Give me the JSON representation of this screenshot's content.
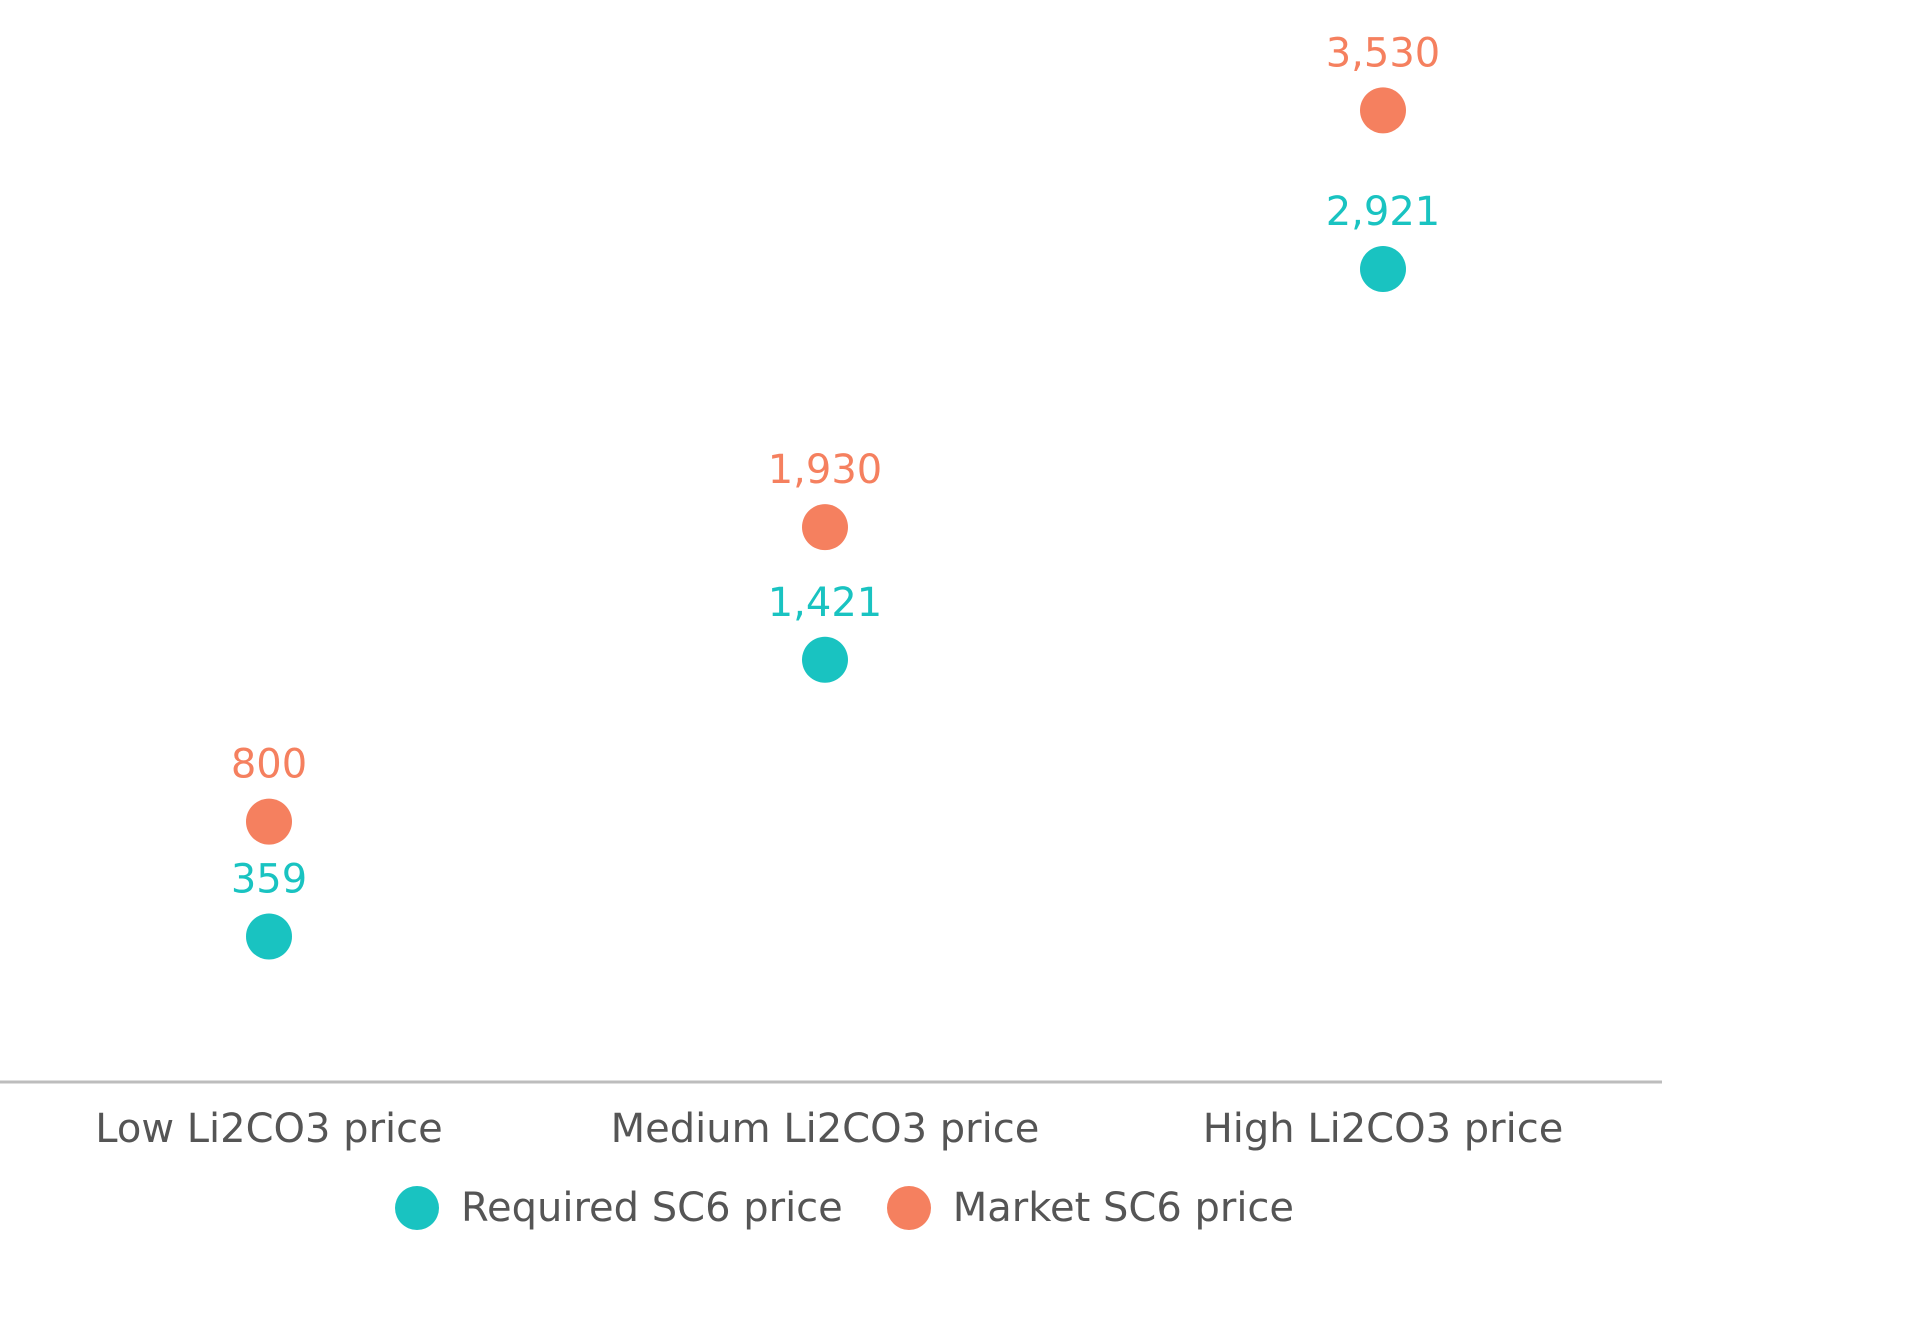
{
  "chart_data": {
    "type": "scatter",
    "categories": [
      "Low Li2CO3 price",
      "Medium Li2CO3 price",
      "High Li2CO3 price"
    ],
    "series": [
      {
        "name": "Required SC6 price",
        "color": "#19C3C1",
        "values": [
          359,
          1421,
          2921
        ],
        "labels": [
          "359",
          "1,421",
          "2,921"
        ]
      },
      {
        "name": "Market SC6 price",
        "color": "#F5805F",
        "values": [
          800,
          1930,
          3530
        ],
        "labels": [
          "800",
          "1,930",
          "3,530"
        ]
      }
    ],
    "ylim": [
      0,
      3800
    ],
    "grid": false,
    "legend_position": "bottom"
  }
}
